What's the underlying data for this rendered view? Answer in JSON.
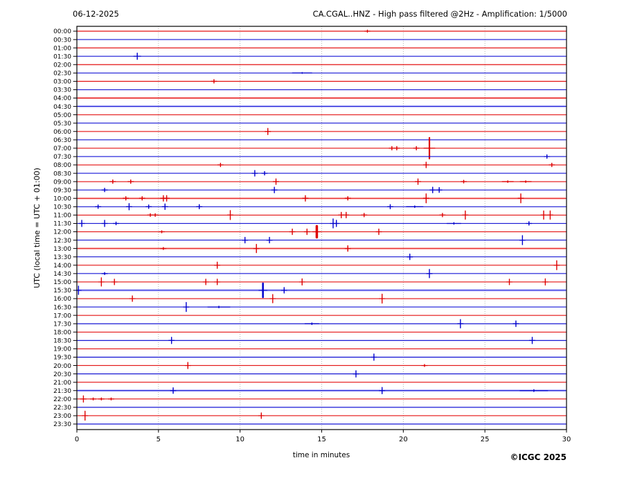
{
  "header": {
    "date": "06-12-2025",
    "title": "CA.CGAL..HNZ - High pass filtered @2Hz - Amplification: 1/5000"
  },
  "footer": {
    "credit": "©ICGC 2025"
  },
  "chart_data": {
    "type": "line",
    "subtype": "helicorder-dayplot",
    "xlabel": "time in minutes",
    "ylabel": "UTC (local time = UTC + 01:00)",
    "xlim": [
      0,
      30
    ],
    "x_ticks": [
      0,
      5,
      10,
      15,
      20,
      25,
      30
    ],
    "grid": "vertical dotted lines every 5 minutes",
    "legend_position": "none",
    "minutes_per_row": 30,
    "colors": {
      "red_core": "#dd0000",
      "red_halo": "#ff5555",
      "red_band": "#ffaaaa",
      "blue_core": "#0000cc",
      "blue_halo": "#6666ff",
      "blue_band": "#aaaaff",
      "grid": "#a0a0a0",
      "frame": "#000000"
    },
    "events_format": "[minute, spike_half_amplitude_px, tail_halfwidth_px(optional, default 4), spike_stroke_px(optional, default 1.4)]",
    "rows": [
      {
        "time": "00:00",
        "color": "red",
        "noisy": false,
        "events": [
          [
            17.8,
            1.5
          ]
        ]
      },
      {
        "time": "00:30",
        "color": "blue",
        "noisy": false,
        "events": []
      },
      {
        "time": "01:00",
        "color": "red",
        "noisy": false,
        "events": []
      },
      {
        "time": "01:30",
        "color": "blue",
        "noisy": false,
        "events": [
          [
            3.7,
            4.5,
            5
          ]
        ]
      },
      {
        "time": "02:00",
        "color": "red",
        "noisy": false,
        "events": []
      },
      {
        "time": "02:30",
        "color": "blue",
        "noisy": false,
        "events": [
          [
            13.8,
            1.2,
            14,
            0.8
          ]
        ]
      },
      {
        "time": "03:00",
        "color": "red",
        "noisy": false,
        "events": [
          [
            8.4,
            2.5
          ]
        ]
      },
      {
        "time": "03:30",
        "color": "blue",
        "noisy": false,
        "events": []
      },
      {
        "time": "04:00",
        "color": "red",
        "noisy": true,
        "events": []
      },
      {
        "time": "04:30",
        "color": "blue",
        "noisy": true,
        "events": []
      },
      {
        "time": "05:00",
        "color": "red",
        "noisy": false,
        "events": []
      },
      {
        "time": "05:30",
        "color": "blue",
        "noisy": false,
        "events": []
      },
      {
        "time": "06:00",
        "color": "red",
        "noisy": false,
        "events": [
          [
            11.7,
            4.5
          ]
        ]
      },
      {
        "time": "06:30",
        "color": "blue",
        "noisy": false,
        "events": []
      },
      {
        "time": "07:00",
        "color": "red",
        "noisy": false,
        "events": [
          [
            19.3,
            2.5
          ],
          [
            19.6,
            2.5
          ],
          [
            20.8,
            2.5
          ],
          [
            21.6,
            15,
            8,
            2.2
          ]
        ]
      },
      {
        "time": "07:30",
        "color": "blue",
        "noisy": false,
        "events": [
          [
            28.8,
            2.5
          ]
        ]
      },
      {
        "time": "08:00",
        "color": "red",
        "noisy": false,
        "events": [
          [
            8.8,
            2.5
          ],
          [
            21.4,
            4
          ],
          [
            29.1,
            2.5
          ]
        ]
      },
      {
        "time": "08:30",
        "color": "blue",
        "noisy": false,
        "events": [
          [
            10.9,
            4
          ],
          [
            11.5,
            2.5
          ]
        ]
      },
      {
        "time": "09:00",
        "color": "red",
        "noisy": false,
        "events": [
          [
            2.2,
            2.5
          ],
          [
            3.3,
            2.5
          ],
          [
            12.2,
            4
          ],
          [
            20.9,
            4
          ],
          [
            23.7,
            2
          ],
          [
            26.4,
            1.2,
            8
          ],
          [
            27.5,
            1.2,
            8
          ]
        ]
      },
      {
        "time": "09:30",
        "color": "blue",
        "noisy": false,
        "events": [
          [
            1.7,
            2.5
          ],
          [
            12.1,
            4
          ],
          [
            21.8,
            4
          ],
          [
            22.2,
            3.5
          ]
        ]
      },
      {
        "time": "10:00",
        "color": "red",
        "noisy": true,
        "events": [
          [
            3.0,
            2.5
          ],
          [
            4.0,
            2.5
          ],
          [
            5.3,
            4
          ],
          [
            5.5,
            4
          ],
          [
            14.0,
            4
          ],
          [
            16.6,
            2.5
          ],
          [
            21.4,
            6.5
          ],
          [
            27.2,
            6.5
          ]
        ]
      },
      {
        "time": "10:30",
        "color": "blue",
        "noisy": false,
        "events": [
          [
            1.3,
            2.5
          ],
          [
            3.2,
            4.5
          ],
          [
            4.4,
            2.5
          ],
          [
            5.4,
            4
          ],
          [
            7.5,
            3
          ],
          [
            19.2,
            3
          ],
          [
            20.7,
            1.2,
            12
          ]
        ]
      },
      {
        "time": "11:00",
        "color": "red",
        "noisy": false,
        "events": [
          [
            4.5,
            2
          ],
          [
            4.8,
            2
          ],
          [
            9.4,
            6.5
          ],
          [
            16.2,
            4
          ],
          [
            16.5,
            4
          ],
          [
            17.6,
            2.5
          ],
          [
            22.4,
            2.5
          ],
          [
            23.8,
            6
          ],
          [
            28.6,
            6
          ],
          [
            29.0,
            6
          ]
        ]
      },
      {
        "time": "11:30",
        "color": "blue",
        "noisy": false,
        "events": [
          [
            0.3,
            4.5
          ],
          [
            1.7,
            4.5
          ],
          [
            2.4,
            2
          ],
          [
            15.7,
            6.5
          ],
          [
            15.9,
            4.5
          ],
          [
            23.1,
            1.2,
            10
          ],
          [
            27.7,
            2.5
          ]
        ]
      },
      {
        "time": "12:00",
        "color": "red",
        "noisy": false,
        "events": [
          [
            5.2,
            1.5
          ],
          [
            13.2,
            4
          ],
          [
            14.1,
            4
          ],
          [
            14.7,
            8,
            6,
            3.5
          ],
          [
            18.5,
            4
          ]
        ]
      },
      {
        "time": "12:30",
        "color": "blue",
        "noisy": false,
        "events": [
          [
            10.3,
            4
          ],
          [
            11.8,
            4
          ],
          [
            27.3,
            6.5
          ]
        ]
      },
      {
        "time": "13:00",
        "color": "red",
        "noisy": true,
        "events": [
          [
            5.3,
            1.5
          ],
          [
            11.0,
            6
          ],
          [
            16.6,
            4
          ]
        ]
      },
      {
        "time": "13:30",
        "color": "blue",
        "noisy": false,
        "events": [
          [
            20.4,
            4
          ]
        ]
      },
      {
        "time": "14:00",
        "color": "red",
        "noisy": false,
        "events": [
          [
            8.6,
            4.5
          ],
          [
            29.4,
            6.5
          ]
        ]
      },
      {
        "time": "14:30",
        "color": "blue",
        "noisy": false,
        "events": [
          [
            1.7,
            1.5
          ],
          [
            21.6,
            6
          ]
        ]
      },
      {
        "time": "15:00",
        "color": "red",
        "noisy": false,
        "events": [
          [
            1.5,
            6
          ],
          [
            2.3,
            4
          ],
          [
            7.9,
            4
          ],
          [
            8.6,
            4
          ],
          [
            13.8,
            4.5
          ],
          [
            26.5,
            4
          ],
          [
            28.7,
            4.5
          ]
        ]
      },
      {
        "time": "15:30",
        "color": "blue",
        "noisy": true,
        "events": [
          [
            0.1,
            6
          ],
          [
            11.4,
            10,
            6,
            2.5
          ],
          [
            12.7,
            4
          ]
        ]
      },
      {
        "time": "16:00",
        "color": "red",
        "noisy": false,
        "events": [
          [
            3.4,
            4
          ],
          [
            12.0,
            6
          ],
          [
            18.7,
            6.5
          ]
        ]
      },
      {
        "time": "16:30",
        "color": "blue",
        "noisy": false,
        "events": [
          [
            6.7,
            6.5
          ],
          [
            8.7,
            1.2,
            16
          ]
        ]
      },
      {
        "time": "17:00",
        "color": "red",
        "noisy": false,
        "events": []
      },
      {
        "time": "17:30",
        "color": "blue",
        "noisy": false,
        "events": [
          [
            14.4,
            1.2,
            10
          ],
          [
            23.5,
            6
          ],
          [
            26.9,
            4
          ]
        ]
      },
      {
        "time": "18:00",
        "color": "red",
        "noisy": false,
        "events": []
      },
      {
        "time": "18:30",
        "color": "blue",
        "noisy": false,
        "events": [
          [
            5.8,
            4.5
          ],
          [
            27.9,
            4.5
          ]
        ]
      },
      {
        "time": "19:00",
        "color": "red",
        "noisy": false,
        "events": []
      },
      {
        "time": "19:30",
        "color": "blue",
        "noisy": false,
        "events": [
          [
            18.2,
            4.5
          ]
        ]
      },
      {
        "time": "20:00",
        "color": "red",
        "noisy": false,
        "events": [
          [
            6.8,
            4.5
          ],
          [
            21.3,
            1.5
          ]
        ]
      },
      {
        "time": "20:30",
        "color": "blue",
        "noisy": false,
        "events": [
          [
            17.1,
            4.5
          ]
        ]
      },
      {
        "time": "21:00",
        "color": "red",
        "noisy": false,
        "events": []
      },
      {
        "time": "21:30",
        "color": "blue",
        "noisy": true,
        "events": [
          [
            5.9,
            4
          ],
          [
            18.7,
            4.5
          ],
          [
            28.0,
            1.4,
            20
          ]
        ]
      },
      {
        "time": "22:00",
        "color": "red",
        "noisy": false,
        "events": [
          [
            0.4,
            4.5
          ],
          [
            1.0,
            1.5
          ],
          [
            1.5,
            1.5
          ],
          [
            2.1,
            1.5
          ]
        ]
      },
      {
        "time": "22:30",
        "color": "blue",
        "noisy": false,
        "events": []
      },
      {
        "time": "23:00",
        "color": "red",
        "noisy": false,
        "events": [
          [
            0.5,
            6.5
          ],
          [
            11.3,
            4
          ]
        ]
      },
      {
        "time": "23:30",
        "color": "blue",
        "noisy": false,
        "events": []
      }
    ]
  }
}
